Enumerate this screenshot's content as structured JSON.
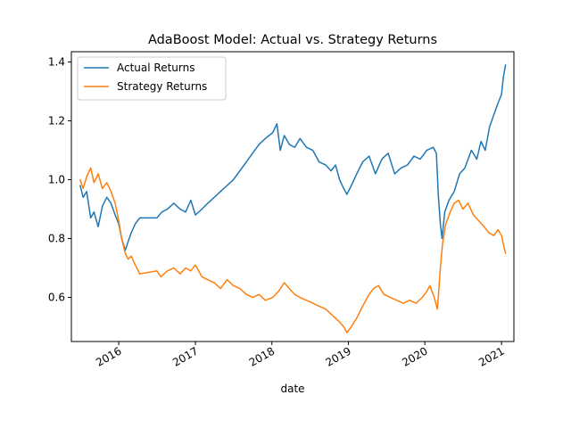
{
  "chart_data": {
    "type": "line",
    "title": "AdaBoost Model: Actual vs. Strategy Returns",
    "xlabel": "date",
    "ylabel": "",
    "xlim": [
      "2015-05-20",
      "2021-03-01"
    ],
    "ylim": [
      0.45,
      1.435
    ],
    "grid": false,
    "legend_position": "upper-left",
    "x_ticks": [
      {
        "date": "2016-01-01",
        "label": "2016"
      },
      {
        "date": "2017-01-01",
        "label": "2017"
      },
      {
        "date": "2018-01-01",
        "label": "2018"
      },
      {
        "date": "2019-01-01",
        "label": "2019"
      },
      {
        "date": "2020-01-01",
        "label": "2020"
      },
      {
        "date": "2021-01-01",
        "label": "2021"
      }
    ],
    "y_ticks": [
      0.6,
      0.8,
      1.0,
      1.2,
      1.4
    ],
    "y_tick_labels": [
      "0.6",
      "0.8",
      "1.0",
      "1.2",
      "1.4"
    ],
    "series": [
      {
        "name": "Actual Returns",
        "color": "#1f77b4",
        "points": [
          [
            "2015-07-01",
            0.98
          ],
          [
            "2015-07-15",
            0.94
          ],
          [
            "2015-08-01",
            0.96
          ],
          [
            "2015-08-20",
            0.87
          ],
          [
            "2015-09-05",
            0.89
          ],
          [
            "2015-09-25",
            0.84
          ],
          [
            "2015-10-15",
            0.91
          ],
          [
            "2015-11-05",
            0.94
          ],
          [
            "2015-11-25",
            0.92
          ],
          [
            "2015-12-15",
            0.88
          ],
          [
            "2016-01-01",
            0.85
          ],
          [
            "2016-01-15",
            0.8
          ],
          [
            "2016-02-01",
            0.76
          ],
          [
            "2016-02-15",
            0.79
          ],
          [
            "2016-03-01",
            0.82
          ],
          [
            "2016-03-20",
            0.85
          ],
          [
            "2016-04-10",
            0.87
          ],
          [
            "2016-07-01",
            0.87
          ],
          [
            "2016-07-25",
            0.89
          ],
          [
            "2016-08-20",
            0.9
          ],
          [
            "2016-09-20",
            0.92
          ],
          [
            "2016-10-20",
            0.9
          ],
          [
            "2016-11-15",
            0.89
          ],
          [
            "2016-12-10",
            0.93
          ],
          [
            "2017-01-01",
            0.88
          ],
          [
            "2017-02-01",
            0.9
          ],
          [
            "2017-03-01",
            0.92
          ],
          [
            "2017-04-01",
            0.94
          ],
          [
            "2017-05-01",
            0.96
          ],
          [
            "2017-06-01",
            0.98
          ],
          [
            "2017-07-01",
            1.0
          ],
          [
            "2017-08-01",
            1.03
          ],
          [
            "2017-09-01",
            1.06
          ],
          [
            "2017-10-01",
            1.09
          ],
          [
            "2017-11-01",
            1.12
          ],
          [
            "2017-12-01",
            1.14
          ],
          [
            "2018-01-05",
            1.16
          ],
          [
            "2018-01-25",
            1.19
          ],
          [
            "2018-02-10",
            1.1
          ],
          [
            "2018-03-01",
            1.15
          ],
          [
            "2018-03-25",
            1.12
          ],
          [
            "2018-04-20",
            1.11
          ],
          [
            "2018-05-15",
            1.14
          ],
          [
            "2018-06-15",
            1.11
          ],
          [
            "2018-07-15",
            1.1
          ],
          [
            "2018-08-15",
            1.06
          ],
          [
            "2018-09-15",
            1.05
          ],
          [
            "2018-10-10",
            1.03
          ],
          [
            "2018-11-01",
            1.05
          ],
          [
            "2018-11-20",
            1.0
          ],
          [
            "2018-12-10",
            0.97
          ],
          [
            "2018-12-25",
            0.95
          ],
          [
            "2019-01-15",
            0.98
          ],
          [
            "2019-02-10",
            1.02
          ],
          [
            "2019-03-10",
            1.06
          ],
          [
            "2019-04-10",
            1.08
          ],
          [
            "2019-05-10",
            1.02
          ],
          [
            "2019-06-10",
            1.07
          ],
          [
            "2019-07-10",
            1.09
          ],
          [
            "2019-08-10",
            1.02
          ],
          [
            "2019-09-10",
            1.04
          ],
          [
            "2019-10-10",
            1.05
          ],
          [
            "2019-11-10",
            1.08
          ],
          [
            "2019-12-10",
            1.07
          ],
          [
            "2020-01-10",
            1.1
          ],
          [
            "2020-02-10",
            1.11
          ],
          [
            "2020-02-25",
            1.09
          ],
          [
            "2020-03-05",
            0.95
          ],
          [
            "2020-03-15",
            0.85
          ],
          [
            "2020-03-23",
            0.8
          ],
          [
            "2020-04-05",
            0.89
          ],
          [
            "2020-04-25",
            0.93
          ],
          [
            "2020-05-20",
            0.96
          ],
          [
            "2020-06-15",
            1.02
          ],
          [
            "2020-07-10",
            1.04
          ],
          [
            "2020-08-10",
            1.1
          ],
          [
            "2020-09-05",
            1.07
          ],
          [
            "2020-09-25",
            1.13
          ],
          [
            "2020-10-15",
            1.1
          ],
          [
            "2020-11-05",
            1.18
          ],
          [
            "2020-11-25",
            1.22
          ],
          [
            "2020-12-15",
            1.26
          ],
          [
            "2021-01-01",
            1.29
          ],
          [
            "2021-01-10",
            1.35
          ],
          [
            "2021-01-20",
            1.39
          ]
        ]
      },
      {
        "name": "Strategy Returns",
        "color": "#ff7f0e",
        "points": [
          [
            "2015-07-01",
            1.0
          ],
          [
            "2015-07-15",
            0.97
          ],
          [
            "2015-08-01",
            1.01
          ],
          [
            "2015-08-20",
            1.04
          ],
          [
            "2015-09-05",
            0.99
          ],
          [
            "2015-09-25",
            1.02
          ],
          [
            "2015-10-15",
            0.97
          ],
          [
            "2015-11-05",
            0.99
          ],
          [
            "2015-11-25",
            0.96
          ],
          [
            "2015-12-15",
            0.92
          ],
          [
            "2016-01-01",
            0.86
          ],
          [
            "2016-01-15",
            0.8
          ],
          [
            "2016-02-01",
            0.75
          ],
          [
            "2016-02-15",
            0.73
          ],
          [
            "2016-03-01",
            0.74
          ],
          [
            "2016-03-20",
            0.71
          ],
          [
            "2016-04-10",
            0.68
          ],
          [
            "2016-07-01",
            0.69
          ],
          [
            "2016-07-20",
            0.67
          ],
          [
            "2016-08-20",
            0.69
          ],
          [
            "2016-09-20",
            0.7
          ],
          [
            "2016-10-20",
            0.68
          ],
          [
            "2016-11-15",
            0.7
          ],
          [
            "2016-12-10",
            0.69
          ],
          [
            "2017-01-01",
            0.71
          ],
          [
            "2017-02-01",
            0.67
          ],
          [
            "2017-03-01",
            0.66
          ],
          [
            "2017-04-01",
            0.65
          ],
          [
            "2017-05-01",
            0.63
          ],
          [
            "2017-06-01",
            0.66
          ],
          [
            "2017-07-01",
            0.64
          ],
          [
            "2017-08-01",
            0.63
          ],
          [
            "2017-09-01",
            0.61
          ],
          [
            "2017-10-01",
            0.6
          ],
          [
            "2017-11-01",
            0.61
          ],
          [
            "2017-12-01",
            0.59
          ],
          [
            "2018-01-05",
            0.6
          ],
          [
            "2018-02-01",
            0.62
          ],
          [
            "2018-03-01",
            0.65
          ],
          [
            "2018-03-25",
            0.63
          ],
          [
            "2018-04-20",
            0.61
          ],
          [
            "2018-05-15",
            0.6
          ],
          [
            "2018-06-15",
            0.59
          ],
          [
            "2018-07-15",
            0.58
          ],
          [
            "2018-08-15",
            0.57
          ],
          [
            "2018-09-15",
            0.56
          ],
          [
            "2018-10-15",
            0.54
          ],
          [
            "2018-11-15",
            0.52
          ],
          [
            "2018-12-10",
            0.5
          ],
          [
            "2018-12-25",
            0.48
          ],
          [
            "2019-01-15",
            0.5
          ],
          [
            "2019-02-10",
            0.53
          ],
          [
            "2019-03-10",
            0.57
          ],
          [
            "2019-04-10",
            0.61
          ],
          [
            "2019-05-01",
            0.63
          ],
          [
            "2019-05-25",
            0.64
          ],
          [
            "2019-06-20",
            0.61
          ],
          [
            "2019-07-20",
            0.6
          ],
          [
            "2019-08-20",
            0.59
          ],
          [
            "2019-09-20",
            0.58
          ],
          [
            "2019-10-20",
            0.59
          ],
          [
            "2019-11-20",
            0.58
          ],
          [
            "2019-12-20",
            0.6
          ],
          [
            "2020-01-10",
            0.62
          ],
          [
            "2020-01-25",
            0.64
          ],
          [
            "2020-02-15",
            0.6
          ],
          [
            "2020-03-01",
            0.56
          ],
          [
            "2020-03-15",
            0.7
          ],
          [
            "2020-03-25",
            0.78
          ],
          [
            "2020-04-10",
            0.85
          ],
          [
            "2020-05-01",
            0.89
          ],
          [
            "2020-05-20",
            0.92
          ],
          [
            "2020-06-10",
            0.93
          ],
          [
            "2020-07-01",
            0.9
          ],
          [
            "2020-07-25",
            0.92
          ],
          [
            "2020-08-20",
            0.88
          ],
          [
            "2020-09-15",
            0.86
          ],
          [
            "2020-10-10",
            0.84
          ],
          [
            "2020-11-01",
            0.82
          ],
          [
            "2020-11-25",
            0.81
          ],
          [
            "2020-12-15",
            0.83
          ],
          [
            "2021-01-01",
            0.81
          ],
          [
            "2021-01-10",
            0.78
          ],
          [
            "2021-01-20",
            0.75
          ]
        ]
      }
    ]
  }
}
